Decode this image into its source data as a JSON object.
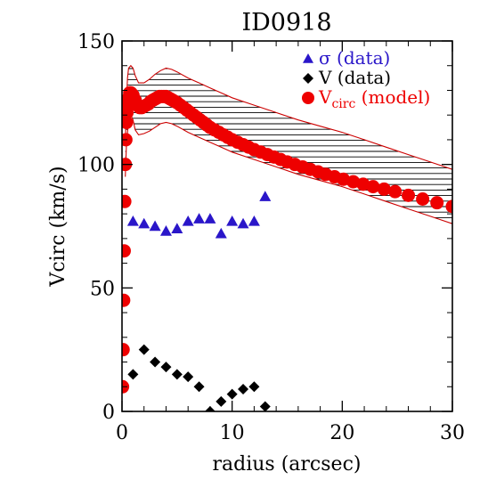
{
  "chart_data": {
    "type": "scatter",
    "title": "ID0918",
    "xlabel": "radius (arcsec)",
    "ylabel": "Vcirc (km/s)",
    "xlim": [
      0,
      30
    ],
    "ylim": [
      0,
      150
    ],
    "xticks": [
      0,
      10,
      20,
      30
    ],
    "yticks": [
      0,
      50,
      100,
      150
    ],
    "grid": false,
    "legend": "top-right",
    "legend_entries": [
      {
        "symbol": "triangle",
        "color": "#2a16c9",
        "main": "σ (data)",
        "sub": "",
        "after": ""
      },
      {
        "symbol": "diamond",
        "color": "#000000",
        "main": "V (data)",
        "sub": "",
        "after": ""
      },
      {
        "symbol": "circle",
        "color": "#ee0000",
        "main": "V",
        "sub": "circ",
        "after": " (model)"
      }
    ],
    "series": [
      {
        "key": "sigma",
        "marker": "triangle",
        "color": "#2a16c9",
        "x": [
          1,
          2,
          3,
          4,
          5,
          6,
          7,
          8,
          9,
          10,
          11,
          12,
          13
        ],
        "y": [
          77,
          76,
          75,
          73,
          74,
          77,
          78,
          78,
          72,
          77,
          76,
          77,
          87
        ]
      },
      {
        "key": "velocity",
        "marker": "diamond",
        "color": "#000000",
        "x": [
          1,
          2,
          3,
          4,
          5,
          6,
          7,
          8,
          9,
          10,
          11,
          12,
          13
        ],
        "y": [
          15,
          25,
          20,
          18,
          15,
          14,
          10,
          0,
          4,
          7,
          9,
          10,
          2
        ]
      },
      {
        "key": "vcirc_model",
        "marker": "circle",
        "color": "#ee0000",
        "x": [
          0.05,
          0.1,
          0.15,
          0.2,
          0.25,
          0.3,
          0.35,
          0.4,
          0.45,
          0.5,
          0.6,
          0.7,
          0.8,
          0.9,
          1.0,
          1.2,
          1.4,
          1.6,
          1.8,
          2.0,
          2.2,
          2.4,
          2.6,
          2.8,
          3.0,
          3.2,
          3.4,
          3.6,
          3.8,
          4.0,
          4.2,
          4.4,
          4.6,
          4.8,
          5.0,
          5.3,
          5.6,
          5.9,
          6.2,
          6.5,
          6.8,
          7.1,
          7.4,
          7.7,
          8.0,
          8.4,
          8.8,
          9.2,
          9.6,
          10.0,
          10.5,
          11.0,
          11.5,
          12.0,
          12.6,
          13.2,
          13.8,
          14.4,
          15.0,
          15.7,
          16.4,
          17.1,
          17.8,
          18.5,
          19.3,
          20.1,
          21.0,
          21.9,
          22.8,
          23.8,
          24.8,
          26.0,
          27.3,
          28.6,
          30.0
        ],
        "y": [
          10,
          25,
          45,
          65,
          85,
          100,
          110,
          117,
          121,
          124,
          127,
          129,
          129,
          128.5,
          128,
          126,
          124,
          123,
          123,
          123.5,
          124,
          124.5,
          125.5,
          126,
          126.5,
          127,
          127.5,
          127.5,
          127.5,
          127.5,
          127,
          126.5,
          126,
          125.5,
          125,
          124,
          123,
          122,
          121,
          120,
          119,
          118,
          117,
          116,
          115,
          114,
          113,
          112,
          111,
          110,
          109,
          108,
          107,
          106,
          105,
          104,
          103,
          102,
          101,
          100,
          99,
          98,
          97,
          96,
          95,
          94,
          93,
          92,
          91,
          90,
          89,
          87.5,
          86,
          84.5,
          83
        ]
      }
    ],
    "model_band": {
      "color": "#cc0000",
      "x": [
        0.3,
        0.4,
        0.5,
        0.6,
        0.8,
        1,
        1.2,
        1.5,
        2,
        2.5,
        3,
        3.5,
        4,
        4.5,
        5,
        6,
        7,
        8,
        9,
        10,
        12,
        14,
        16,
        18,
        20,
        22,
        24,
        26,
        28,
        30
      ],
      "upper": [
        108,
        125,
        135,
        139,
        140,
        139,
        136,
        133,
        133,
        134.5,
        136.5,
        138,
        139,
        138.5,
        137.5,
        135,
        133,
        131,
        129,
        127,
        124,
        121,
        118,
        115.5,
        113,
        110,
        107,
        104,
        101,
        98
      ],
      "lower": [
        95,
        107,
        113,
        117,
        120,
        118,
        114,
        112,
        112.5,
        113.5,
        115,
        116.5,
        117,
        116.5,
        115.5,
        113,
        111,
        109,
        107,
        105,
        102,
        99,
        96,
        93.5,
        91,
        88,
        85,
        82,
        79,
        76
      ]
    }
  }
}
